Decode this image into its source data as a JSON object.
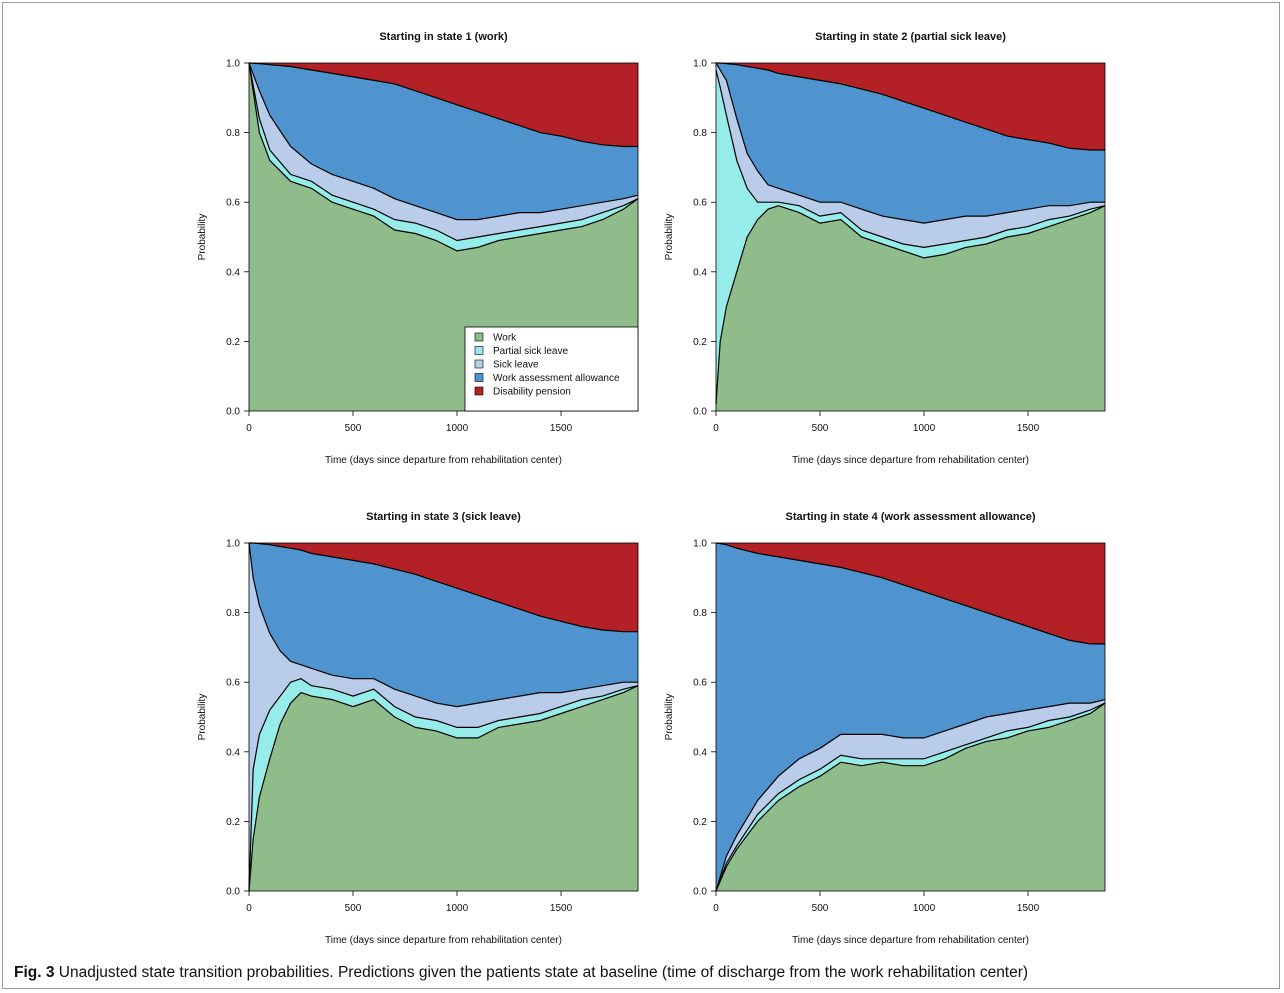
{
  "figure": {
    "label": "Fig. 3",
    "caption": "Unadjusted state transition probabilities. Predictions given the patients state at baseline (time of discharge from the work rehabilitation center)"
  },
  "colors": {
    "work": "#8fbc8b",
    "partial_sick_leave": "#96ece8",
    "sick_leave": "#b9cdea",
    "work_assessment_allowance": "#4f94cf",
    "disability_pension": "#b32025"
  },
  "chart_data": [
    {
      "type": "area",
      "stacked": true,
      "title": "Starting in state 1 (work)",
      "xlabel": "Time (days since departure from rehabilitation center)",
      "ylabel": "Probability",
      "xlim": [
        0,
        1870
      ],
      "ylim": [
        0,
        1
      ],
      "xticks": [
        0,
        500,
        1000,
        1500
      ],
      "yticks": [
        0.0,
        0.2,
        0.4,
        0.6,
        0.8,
        1.0
      ],
      "legend": {
        "position": "bottom-right",
        "entries": [
          "Work",
          "Partial sick leave",
          "Sick leave",
          "Work assessment allowance",
          "Disability pension"
        ]
      },
      "x": [
        0,
        50,
        100,
        200,
        300,
        400,
        500,
        600,
        700,
        800,
        900,
        1000,
        1100,
        1200,
        1300,
        1400,
        1500,
        1600,
        1700,
        1800,
        1870
      ],
      "cumulative_series": [
        {
          "name": "Work",
          "values": [
            1.0,
            0.8,
            0.72,
            0.66,
            0.64,
            0.6,
            0.58,
            0.56,
            0.52,
            0.51,
            0.49,
            0.46,
            0.47,
            0.49,
            0.5,
            0.51,
            0.52,
            0.53,
            0.55,
            0.58,
            0.61
          ]
        },
        {
          "name": "Partial sick leave",
          "values": [
            1.0,
            0.84,
            0.75,
            0.68,
            0.66,
            0.62,
            0.6,
            0.58,
            0.55,
            0.54,
            0.52,
            0.49,
            0.5,
            0.51,
            0.52,
            0.53,
            0.54,
            0.55,
            0.57,
            0.59,
            0.61
          ]
        },
        {
          "name": "Sick leave",
          "values": [
            1.0,
            0.92,
            0.85,
            0.76,
            0.71,
            0.68,
            0.66,
            0.64,
            0.61,
            0.59,
            0.57,
            0.55,
            0.55,
            0.56,
            0.57,
            0.57,
            0.58,
            0.59,
            0.6,
            0.61,
            0.62
          ]
        },
        {
          "name": "Work assessment allowance",
          "values": [
            1.0,
            0.998,
            0.995,
            0.99,
            0.98,
            0.97,
            0.96,
            0.95,
            0.94,
            0.92,
            0.9,
            0.88,
            0.86,
            0.84,
            0.82,
            0.8,
            0.79,
            0.775,
            0.765,
            0.76,
            0.76
          ]
        },
        {
          "name": "Disability pension",
          "values": [
            1.0,
            1.0,
            1.0,
            1.0,
            1.0,
            1.0,
            1.0,
            1.0,
            1.0,
            1.0,
            1.0,
            1.0,
            1.0,
            1.0,
            1.0,
            1.0,
            1.0,
            1.0,
            1.0,
            1.0,
            1.0
          ]
        }
      ]
    },
    {
      "type": "area",
      "stacked": true,
      "title": "Starting in state 2 (partial sick leave)",
      "xlabel": "Time (days since departure from rehabilitation center)",
      "ylabel": "Probability",
      "xlim": [
        0,
        1870
      ],
      "ylim": [
        0,
        1
      ],
      "xticks": [
        0,
        500,
        1000,
        1500
      ],
      "yticks": [
        0.0,
        0.2,
        0.4,
        0.6,
        0.8,
        1.0
      ],
      "x": [
        0,
        20,
        50,
        100,
        150,
        200,
        250,
        300,
        400,
        500,
        600,
        700,
        800,
        900,
        1000,
        1100,
        1200,
        1300,
        1400,
        1500,
        1600,
        1700,
        1800,
        1870
      ],
      "cumulative_series": [
        {
          "name": "Work",
          "values": [
            0.02,
            0.2,
            0.3,
            0.4,
            0.5,
            0.55,
            0.58,
            0.59,
            0.57,
            0.54,
            0.55,
            0.5,
            0.48,
            0.46,
            0.44,
            0.45,
            0.47,
            0.48,
            0.5,
            0.51,
            0.53,
            0.55,
            0.57,
            0.59
          ]
        },
        {
          "name": "Partial sick leave",
          "values": [
            0.98,
            0.93,
            0.85,
            0.72,
            0.64,
            0.6,
            0.6,
            0.6,
            0.59,
            0.56,
            0.57,
            0.52,
            0.5,
            0.48,
            0.47,
            0.48,
            0.49,
            0.5,
            0.52,
            0.53,
            0.55,
            0.56,
            0.58,
            0.59
          ]
        },
        {
          "name": "Sick leave",
          "values": [
            1.0,
            0.98,
            0.95,
            0.84,
            0.74,
            0.69,
            0.65,
            0.64,
            0.62,
            0.6,
            0.6,
            0.58,
            0.56,
            0.55,
            0.54,
            0.55,
            0.56,
            0.56,
            0.57,
            0.58,
            0.59,
            0.59,
            0.6,
            0.6
          ]
        },
        {
          "name": "Work assessment allowance",
          "values": [
            1.0,
            1.0,
            0.998,
            0.995,
            0.99,
            0.985,
            0.98,
            0.97,
            0.96,
            0.95,
            0.94,
            0.925,
            0.91,
            0.89,
            0.87,
            0.85,
            0.83,
            0.81,
            0.79,
            0.78,
            0.77,
            0.755,
            0.75,
            0.75
          ]
        },
        {
          "name": "Disability pension",
          "values": [
            1.0,
            1.0,
            1.0,
            1.0,
            1.0,
            1.0,
            1.0,
            1.0,
            1.0,
            1.0,
            1.0,
            1.0,
            1.0,
            1.0,
            1.0,
            1.0,
            1.0,
            1.0,
            1.0,
            1.0,
            1.0,
            1.0,
            1.0,
            1.0
          ]
        }
      ]
    },
    {
      "type": "area",
      "stacked": true,
      "title": "Starting in state 3 (sick leave)",
      "xlabel": "Time (days since departure from rehabilitation center)",
      "ylabel": "Probability",
      "xlim": [
        0,
        1870
      ],
      "ylim": [
        0,
        1
      ],
      "xticks": [
        0,
        500,
        1000,
        1500
      ],
      "yticks": [
        0.0,
        0.2,
        0.4,
        0.6,
        0.8,
        1.0
      ],
      "x": [
        0,
        20,
        50,
        100,
        150,
        200,
        250,
        300,
        400,
        500,
        600,
        700,
        800,
        900,
        1000,
        1100,
        1200,
        1300,
        1400,
        1500,
        1600,
        1700,
        1800,
        1870
      ],
      "cumulative_series": [
        {
          "name": "Work",
          "values": [
            0.0,
            0.15,
            0.27,
            0.38,
            0.48,
            0.54,
            0.57,
            0.56,
            0.55,
            0.53,
            0.55,
            0.5,
            0.47,
            0.46,
            0.44,
            0.44,
            0.47,
            0.48,
            0.49,
            0.51,
            0.53,
            0.55,
            0.57,
            0.59
          ]
        },
        {
          "name": "Partial sick leave",
          "values": [
            0.0,
            0.35,
            0.45,
            0.52,
            0.56,
            0.6,
            0.61,
            0.59,
            0.58,
            0.56,
            0.58,
            0.53,
            0.5,
            0.49,
            0.47,
            0.47,
            0.49,
            0.5,
            0.51,
            0.53,
            0.55,
            0.56,
            0.58,
            0.59
          ]
        },
        {
          "name": "Sick leave",
          "values": [
            1.0,
            0.9,
            0.82,
            0.74,
            0.69,
            0.66,
            0.65,
            0.64,
            0.62,
            0.61,
            0.61,
            0.58,
            0.56,
            0.54,
            0.53,
            0.54,
            0.55,
            0.56,
            0.57,
            0.57,
            0.58,
            0.59,
            0.6,
            0.6
          ]
        },
        {
          "name": "Work assessment allowance",
          "values": [
            1.0,
            1.0,
            0.998,
            0.995,
            0.99,
            0.985,
            0.98,
            0.97,
            0.96,
            0.95,
            0.94,
            0.925,
            0.91,
            0.89,
            0.87,
            0.85,
            0.83,
            0.81,
            0.79,
            0.775,
            0.76,
            0.75,
            0.745,
            0.745
          ]
        },
        {
          "name": "Disability pension",
          "values": [
            1.0,
            1.0,
            1.0,
            1.0,
            1.0,
            1.0,
            1.0,
            1.0,
            1.0,
            1.0,
            1.0,
            1.0,
            1.0,
            1.0,
            1.0,
            1.0,
            1.0,
            1.0,
            1.0,
            1.0,
            1.0,
            1.0,
            1.0,
            1.0
          ]
        }
      ]
    },
    {
      "type": "area",
      "stacked": true,
      "title": "Starting in state 4 (work assessment allowance)",
      "xlabel": "Time (days since departure from rehabilitation center)",
      "ylabel": "Probability",
      "xlim": [
        0,
        1870
      ],
      "ylim": [
        0,
        1
      ],
      "xticks": [
        0,
        500,
        1000,
        1500
      ],
      "yticks": [
        0.0,
        0.2,
        0.4,
        0.6,
        0.8,
        1.0
      ],
      "x": [
        0,
        50,
        100,
        200,
        300,
        400,
        500,
        600,
        700,
        800,
        900,
        1000,
        1100,
        1200,
        1300,
        1400,
        1500,
        1600,
        1700,
        1800,
        1870
      ],
      "cumulative_series": [
        {
          "name": "Work",
          "values": [
            0.0,
            0.07,
            0.12,
            0.2,
            0.26,
            0.3,
            0.33,
            0.37,
            0.36,
            0.37,
            0.36,
            0.36,
            0.38,
            0.41,
            0.43,
            0.44,
            0.46,
            0.47,
            0.49,
            0.51,
            0.54
          ]
        },
        {
          "name": "Partial sick leave",
          "values": [
            0.0,
            0.08,
            0.13,
            0.22,
            0.28,
            0.32,
            0.35,
            0.39,
            0.38,
            0.38,
            0.38,
            0.38,
            0.4,
            0.42,
            0.44,
            0.46,
            0.47,
            0.49,
            0.5,
            0.52,
            0.54
          ]
        },
        {
          "name": "Sick leave",
          "values": [
            0.0,
            0.1,
            0.16,
            0.26,
            0.33,
            0.38,
            0.41,
            0.45,
            0.45,
            0.45,
            0.44,
            0.44,
            0.46,
            0.48,
            0.5,
            0.51,
            0.52,
            0.53,
            0.54,
            0.54,
            0.55
          ]
        },
        {
          "name": "Work assessment allowance",
          "values": [
            1.0,
            0.995,
            0.985,
            0.97,
            0.96,
            0.95,
            0.94,
            0.93,
            0.915,
            0.9,
            0.88,
            0.86,
            0.84,
            0.82,
            0.8,
            0.78,
            0.76,
            0.74,
            0.72,
            0.71,
            0.71
          ]
        },
        {
          "name": "Disability pension",
          "values": [
            1.0,
            1.0,
            1.0,
            1.0,
            1.0,
            1.0,
            1.0,
            1.0,
            1.0,
            1.0,
            1.0,
            1.0,
            1.0,
            1.0,
            1.0,
            1.0,
            1.0,
            1.0,
            1.0,
            1.0,
            1.0
          ]
        }
      ]
    }
  ]
}
